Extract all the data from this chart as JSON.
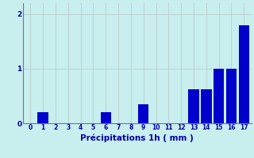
{
  "xlabel": "Précipitations 1h ( mm )",
  "hours": [
    0,
    1,
    2,
    3,
    4,
    5,
    6,
    7,
    8,
    9,
    10,
    11,
    12,
    13,
    14,
    15,
    16,
    17
  ],
  "values": [
    0,
    0.2,
    0,
    0,
    0,
    0,
    0.2,
    0,
    0,
    0.35,
    0,
    0,
    0,
    0.62,
    0.62,
    1.0,
    1.0,
    1.8
  ],
  "bar_color": "#0000CC",
  "background_color": "#C8EEEE",
  "grid_color": "#AADDDD",
  "text_color": "#0000AA",
  "ylim": [
    0,
    2.2
  ],
  "yticks": [
    0,
    1,
    2
  ],
  "bar_width": 0.85
}
